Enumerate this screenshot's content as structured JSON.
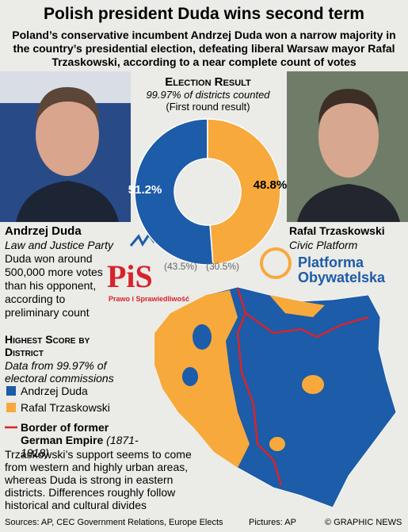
{
  "header": {
    "title": "Polish president Duda wins second term",
    "subtitle": "Poland’s conservative incumbent Andrzej Duda won a narrow majority in the country’s presidential election, defeating liberal Warsaw mayor Rafal Trzaskowski, according to a near complete count of votes"
  },
  "chart_data": {
    "type": "pie",
    "donut": true,
    "title": "Election Result",
    "subtitle": "99.97% of districts counted",
    "note": "(First round result)",
    "categories": [
      "Andrzej Duda",
      "Rafal Trzaskowski"
    ],
    "values": [
      51.2,
      48.8
    ],
    "value_labels": [
      "51.2%",
      "48.8%"
    ],
    "colors": [
      "#1c5ca8",
      "#f7a93c"
    ],
    "first_round": [
      43.5,
      30.5
    ],
    "first_round_labels": [
      "(43.5%)",
      "(30.5%)"
    ]
  },
  "candidates": [
    {
      "party": "Law and Justice Party",
      "text": "Duda won around 500,000 more votes than his opponent, according to preliminary count",
      "logo": "PiS",
      "logo_sub": "Prawo i Sprawiedliwość"
    },
    {
      "party": "Civic Platform",
      "logo": "Platforma Obywatelska"
    }
  ],
  "map": {
    "title": "Highest Score by District",
    "subtitle": "Data from 99.97% of electoral commissions",
    "legend": [
      "Andrzej Duda",
      "Rafal Trzaskowski"
    ],
    "border_label": "Border of former German Empire",
    "border_years": "(1871-1918)",
    "text": "Trzaskowski’s support seems to come from western and highly urban areas, whereas Duda is strong in eastern districts. Differences roughly follow historical and cultural divides"
  },
  "footer": {
    "sources": "Sources: AP, CEC Government Relations, Europe Elects",
    "pictures": "Pictures: AP",
    "credit": "© GRAPHIC NEWS"
  }
}
